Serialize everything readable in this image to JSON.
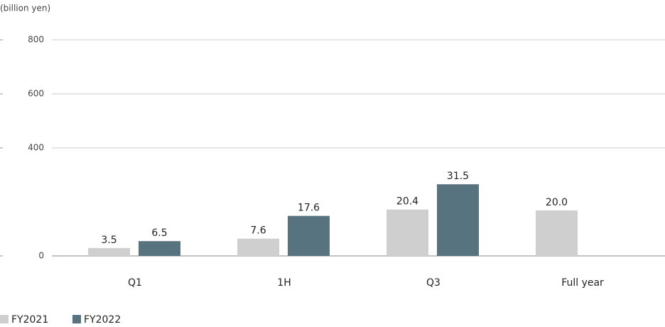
{
  "chart_data": {
    "type": "bar",
    "y_label": "(billion yen)",
    "categories": [
      "Q1",
      "1H",
      "Q3",
      "Full year"
    ],
    "series": [
      {
        "name": "FY2021",
        "color": "#cfcfcf",
        "axis": "y2",
        "values": [
          3.5,
          7.6,
          20.4,
          20.0
        ],
        "value_labels": [
          "3.5",
          "7.6",
          "20.4",
          "20.0"
        ]
      },
      {
        "name": "FY2022",
        "color": "#56737f",
        "axis": "y2",
        "values": [
          6.5,
          17.6,
          31.5,
          null
        ],
        "value_labels": [
          "6.5",
          "17.6",
          "31.5",
          null
        ]
      }
    ],
    "ylim": [
      0,
      800
    ],
    "yticks": [
      0,
      400,
      600,
      800
    ],
    "y2lim": [
      0,
      95
    ],
    "grid": true
  }
}
